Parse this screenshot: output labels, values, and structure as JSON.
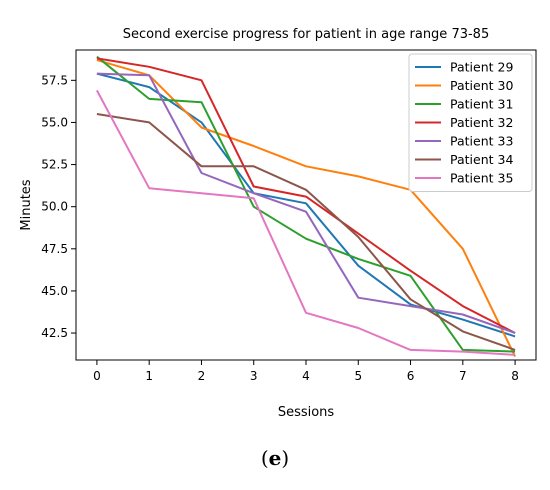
{
  "chart_data": {
    "type": "line",
    "title": "Second exercise progress for patient in age range 73-85",
    "xlabel": "Sessions",
    "ylabel": "Minutes",
    "xlim": [
      -0.4,
      8.4
    ],
    "ylim": [
      40.9,
      59.3
    ],
    "x": [
      0,
      1,
      2,
      3,
      4,
      5,
      6,
      7,
      8
    ],
    "xticks": [
      "0",
      "1",
      "2",
      "3",
      "4",
      "5",
      "6",
      "7",
      "8"
    ],
    "yticks": [
      "42.5",
      "45.0",
      "47.5",
      "50.0",
      "52.5",
      "55.0",
      "57.5"
    ],
    "ytick_values": [
      42.5,
      45.0,
      47.5,
      50.0,
      52.5,
      55.0,
      57.5
    ],
    "grid": false,
    "legend_position": "top-right",
    "series": [
      {
        "name": "Patient 29",
        "color": "#1f77b4",
        "values": [
          57.9,
          57.1,
          55.0,
          50.8,
          50.2,
          46.5,
          44.2,
          43.3,
          42.3
        ]
      },
      {
        "name": "Patient 30",
        "color": "#ff7f0e",
        "values": [
          58.7,
          57.8,
          54.7,
          53.6,
          52.4,
          51.8,
          51.0,
          47.5,
          41.1
        ]
      },
      {
        "name": "Patient 31",
        "color": "#2ca02c",
        "values": [
          58.9,
          56.4,
          56.2,
          50.0,
          48.1,
          46.9,
          45.9,
          41.5,
          41.4
        ]
      },
      {
        "name": "Patient 32",
        "color": "#d62728",
        "values": [
          58.8,
          58.3,
          57.5,
          51.2,
          50.6,
          48.4,
          46.2,
          44.1,
          42.5
        ]
      },
      {
        "name": "Patient 33",
        "color": "#9467bd",
        "values": [
          57.9,
          57.8,
          52.0,
          50.8,
          49.7,
          44.6,
          44.1,
          43.6,
          42.5
        ]
      },
      {
        "name": "Patient 34",
        "color": "#8c564b",
        "values": [
          55.5,
          55.0,
          52.4,
          52.4,
          51.0,
          48.2,
          44.5,
          42.6,
          41.5
        ]
      },
      {
        "name": "Patient 35",
        "color": "#e377c2",
        "values": [
          56.9,
          51.1,
          50.8,
          50.5,
          43.7,
          42.8,
          41.5,
          41.4,
          41.2
        ]
      }
    ]
  },
  "caption": {
    "open": "(",
    "label": "e",
    "close": ")"
  }
}
